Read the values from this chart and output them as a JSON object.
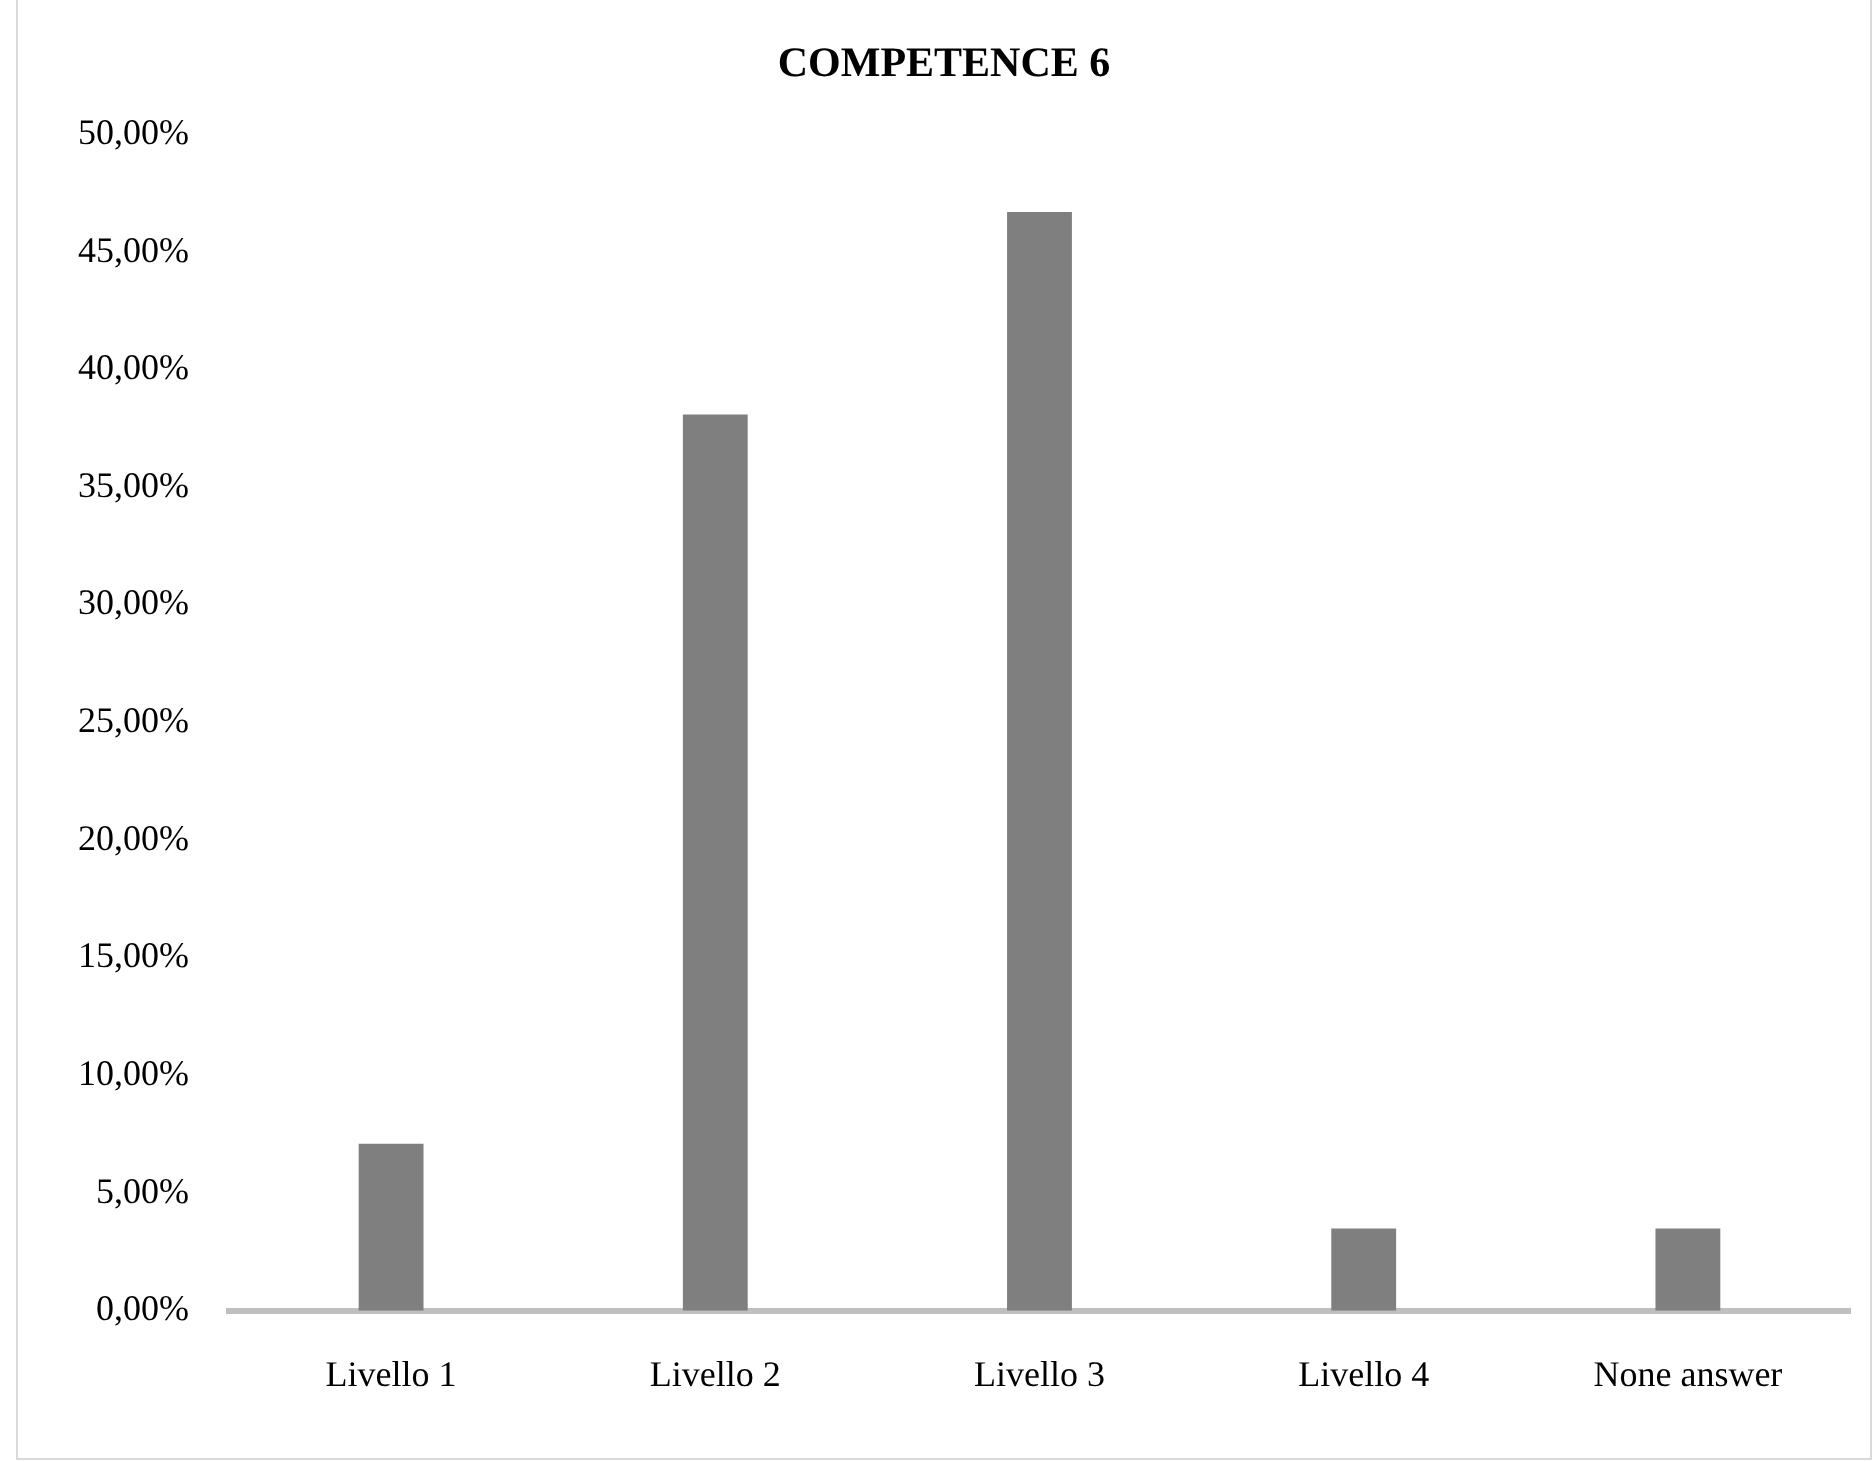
{
  "chart_data": {
    "type": "bar",
    "title": "COMPETENCE 6",
    "categories": [
      "Livello 1",
      "Livello 2",
      "Livello 3",
      "Livello 4",
      "None answer"
    ],
    "values": [
      7.1,
      38.1,
      46.7,
      3.5,
      3.5
    ],
    "color": "#7f7f7f",
    "ylim": [
      0,
      50
    ],
    "yticks": [
      {
        "value": 0,
        "label": "0,00%"
      },
      {
        "value": 5,
        "label": "5,00%"
      },
      {
        "value": 10,
        "label": "10,00%"
      },
      {
        "value": 15,
        "label": "15,00%"
      },
      {
        "value": 20,
        "label": "20,00%"
      },
      {
        "value": 25,
        "label": "25,00%"
      },
      {
        "value": 30,
        "label": "30,00%"
      },
      {
        "value": 35,
        "label": "35,00%"
      },
      {
        "value": 40,
        "label": "40,00%"
      },
      {
        "value": 45,
        "label": "45,00%"
      },
      {
        "value": 50,
        "label": "50,00%"
      }
    ],
    "grid": false,
    "legend": false
  }
}
